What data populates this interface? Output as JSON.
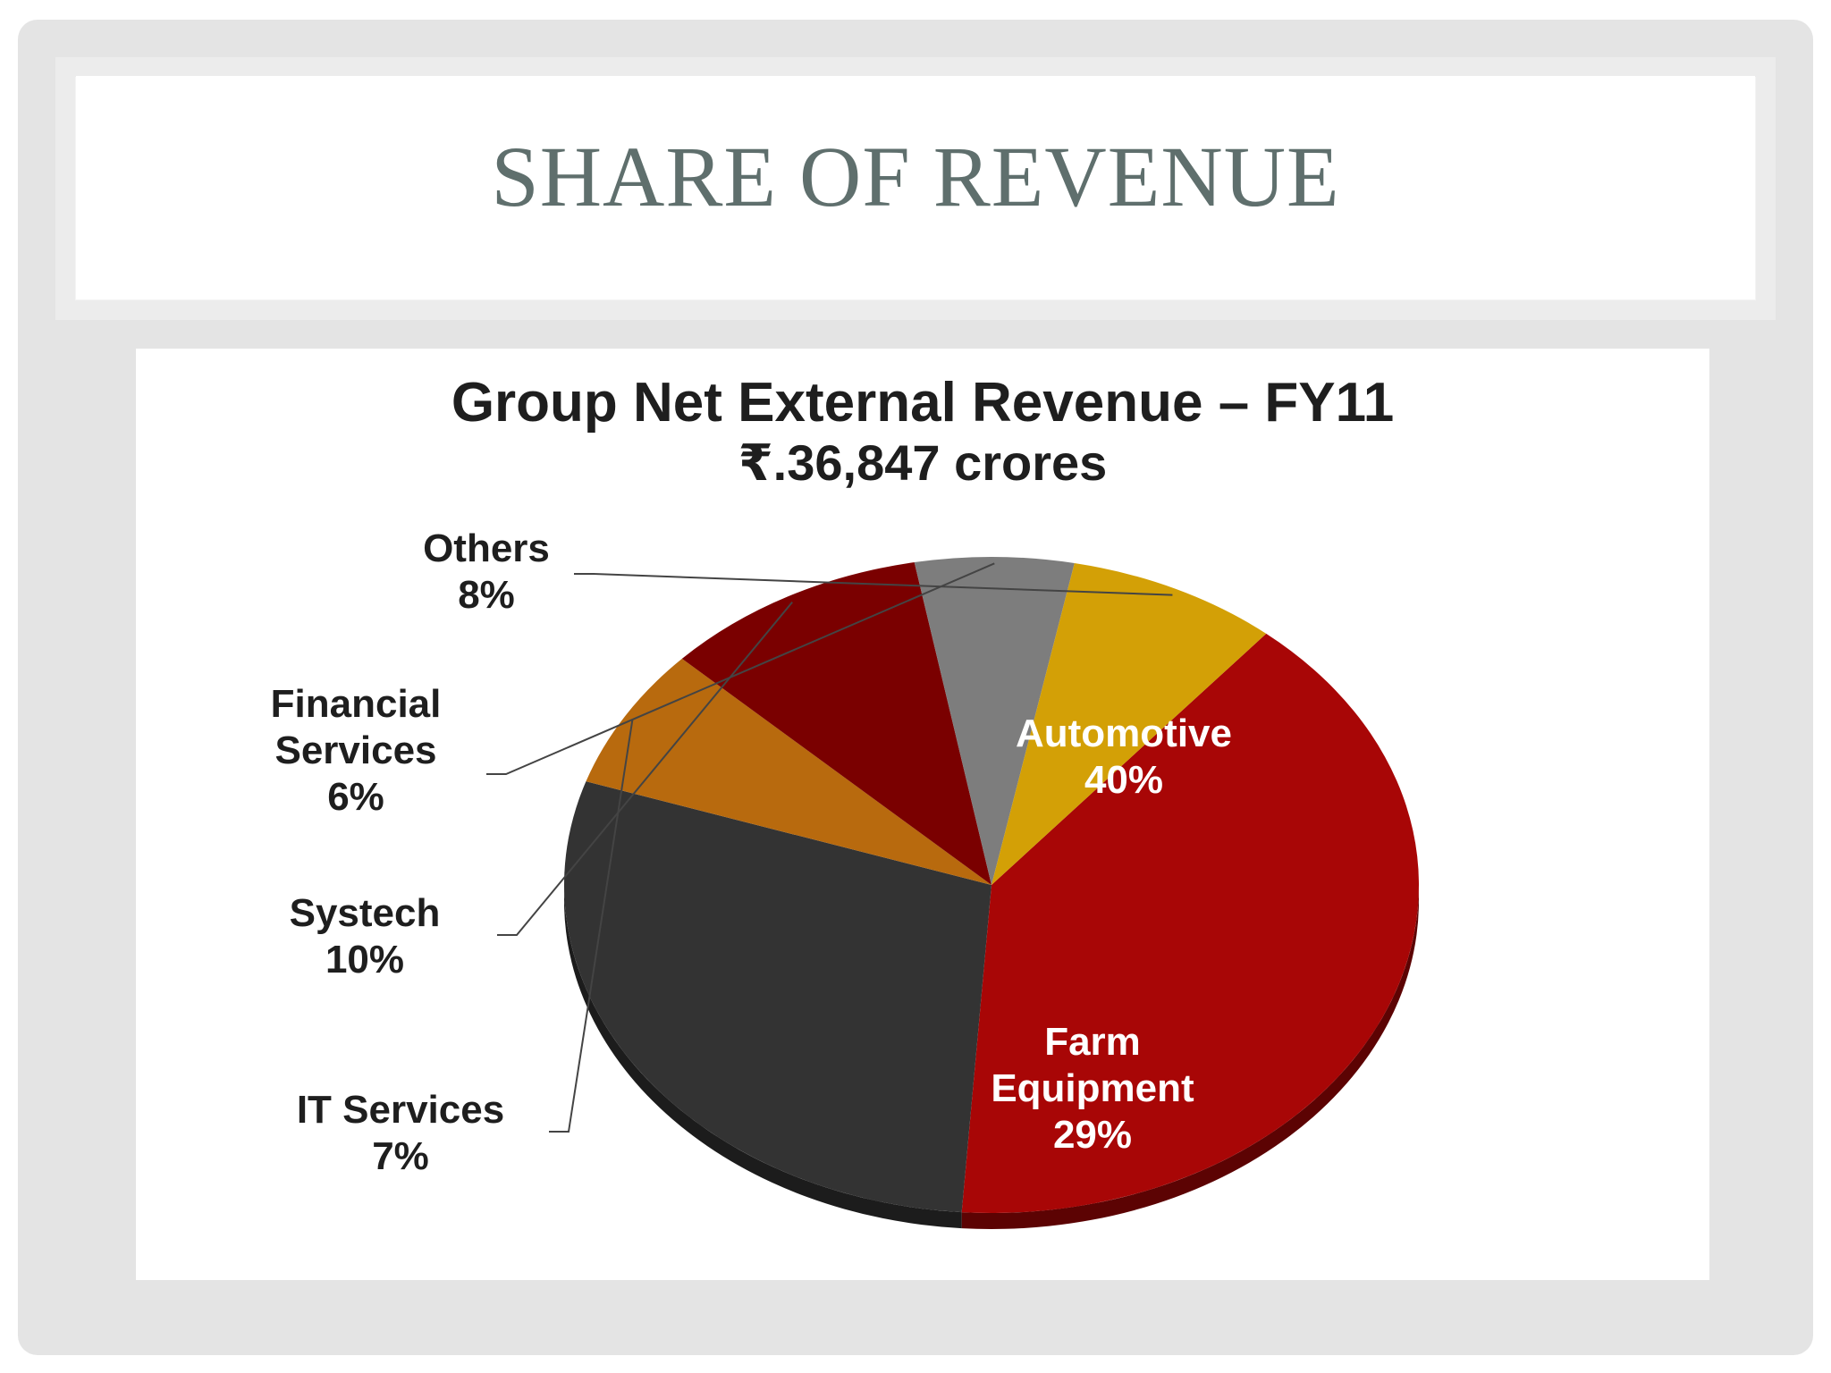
{
  "slide": {
    "title": "SHARE OF REVENUE"
  },
  "chart_data": {
    "type": "pie",
    "title": "Group Net External Revenue – FY11",
    "subtitle": "₹.36,847 crores",
    "slices": [
      {
        "name": "Automotive",
        "label_lines": [
          "Automotive"
        ],
        "value_label": "40%",
        "value": 40,
        "color": "#a80606"
      },
      {
        "name": "Farm Equipment",
        "label_lines": [
          "Farm",
          "Equipment"
        ],
        "value_label": "29%",
        "value": 29,
        "color": "#333333"
      },
      {
        "name": "IT Services",
        "label_lines": [
          "IT Services"
        ],
        "value_label": "7%",
        "value": 7,
        "color": "#b86a0e"
      },
      {
        "name": "Systech",
        "label_lines": [
          "Systech"
        ],
        "value_label": "10%",
        "value": 10,
        "color": "#7a0000"
      },
      {
        "name": "Financial Services",
        "label_lines": [
          "Financial",
          "Services"
        ],
        "value_label": "6%",
        "value": 6,
        "color": "#7d7d7d"
      },
      {
        "name": "Others",
        "label_lines": [
          "Others"
        ],
        "value_label": "8%",
        "value": 8,
        "color": "#d3a006"
      }
    ]
  }
}
